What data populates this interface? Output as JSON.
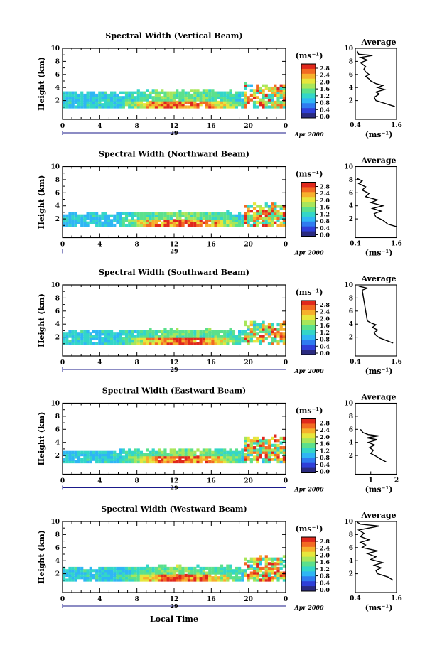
{
  "figure": {
    "x_title": "Local Time",
    "date_label": "Apr 2000",
    "day_label": "29",
    "y_title": "Height (km)",
    "unit_label": "(ms⁻¹)",
    "avg_title": "Average",
    "avg_xlabel": "(ms⁻¹)"
  },
  "colorscale": {
    "ticks": [
      "2.8",
      "2.4",
      "2.0",
      "1.6",
      "1.2",
      "0.8",
      "0.4",
      "0.0"
    ],
    "colors": [
      "#2a2a80",
      "#2f3fd8",
      "#2f7bf0",
      "#2fb6f4",
      "#33d6c8",
      "#5be08c",
      "#a8e65a",
      "#e6e63c",
      "#f6b02c",
      "#f26a22",
      "#e0281c"
    ]
  },
  "chart_data": [
    {
      "type": "heatmap",
      "title": "Spectral Width (Vertical Beam)",
      "xlim": [
        0,
        24
      ],
      "ylim": [
        0,
        10
      ],
      "xticks": [
        "0",
        "4",
        "8",
        "12",
        "16",
        "20",
        "0"
      ],
      "yticks": [
        "2",
        "4",
        "6",
        "8",
        "10"
      ],
      "low_top_km": 3.1,
      "conv_top_km": 4.2,
      "avg": {
        "xlim": [
          0.4,
          1.6
        ],
        "xticks": [
          "0.4",
          "1.6"
        ],
        "profile": [
          [
            1.55,
            1.1
          ],
          [
            1.3,
            1.5
          ],
          [
            1.0,
            2.0
          ],
          [
            0.95,
            2.5
          ],
          [
            1.1,
            3.0
          ],
          [
            1.0,
            3.3
          ],
          [
            1.25,
            3.7
          ],
          [
            1.05,
            4.0
          ],
          [
            1.2,
            4.3
          ],
          [
            1.0,
            4.6
          ],
          [
            0.85,
            5.0
          ],
          [
            0.8,
            5.3
          ],
          [
            0.7,
            5.7
          ],
          [
            0.8,
            6.0
          ],
          [
            0.7,
            6.4
          ],
          [
            0.65,
            6.8
          ],
          [
            0.7,
            7.2
          ],
          [
            0.55,
            7.8
          ],
          [
            0.75,
            8.2
          ],
          [
            0.55,
            8.6
          ],
          [
            0.9,
            8.9
          ],
          [
            0.5,
            9.1
          ],
          [
            0.45,
            9.6
          ]
        ]
      }
    },
    {
      "type": "heatmap",
      "title": "Spectral Width (Northward Beam)",
      "xlim": [
        0,
        24
      ],
      "ylim": [
        0,
        10
      ],
      "xticks": [
        "0",
        "4",
        "8",
        "12",
        "16",
        "20",
        "0"
      ],
      "yticks": [
        "2",
        "4",
        "6",
        "8",
        "10"
      ],
      "low_top_km": 2.6,
      "conv_top_km": 4.0,
      "avg": {
        "xlim": [
          0.4,
          1.6
        ],
        "xticks": [
          "0.4",
          "1.6"
        ],
        "profile": [
          [
            1.6,
            0.8
          ],
          [
            1.35,
            1.2
          ],
          [
            1.2,
            1.8
          ],
          [
            1.0,
            2.3
          ],
          [
            0.95,
            2.8
          ],
          [
            1.15,
            3.2
          ],
          [
            0.9,
            3.6
          ],
          [
            1.2,
            4.0
          ],
          [
            0.85,
            4.5
          ],
          [
            1.05,
            4.9
          ],
          [
            0.7,
            5.4
          ],
          [
            0.8,
            5.9
          ],
          [
            0.6,
            6.4
          ],
          [
            0.7,
            6.9
          ],
          [
            0.5,
            7.4
          ],
          [
            0.6,
            7.8
          ],
          [
            0.45,
            8.2
          ]
        ]
      }
    },
    {
      "type": "heatmap",
      "title": "Spectral Width (Southward Beam)",
      "xlim": [
        0,
        24
      ],
      "ylim": [
        0,
        10
      ],
      "xticks": [
        "0",
        "4",
        "8",
        "12",
        "16",
        "20",
        "0"
      ],
      "yticks": [
        "2",
        "4",
        "6",
        "8",
        "10"
      ],
      "low_top_km": 2.7,
      "conv_top_km": 4.1,
      "avg": {
        "xlim": [
          0.4,
          1.6
        ],
        "xticks": [
          "0.4",
          "1.6"
        ],
        "profile": [
          [
            1.5,
            1.1
          ],
          [
            1.3,
            1.5
          ],
          [
            1.1,
            1.9
          ],
          [
            1.0,
            2.3
          ],
          [
            0.95,
            2.7
          ],
          [
            1.05,
            3.1
          ],
          [
            0.9,
            3.5
          ],
          [
            1.0,
            3.9
          ],
          [
            0.85,
            4.2
          ],
          [
            0.75,
            4.5
          ],
          [
            0.6,
            9.2
          ],
          [
            0.75,
            9.5
          ],
          [
            0.5,
            9.8
          ]
        ]
      }
    },
    {
      "type": "heatmap",
      "title": "Spectral Width (Eastward Beam)",
      "xlim": [
        0,
        24
      ],
      "ylim": [
        0,
        10
      ],
      "xticks": [
        "0",
        "4",
        "8",
        "12",
        "16",
        "20",
        "0"
      ],
      "yticks": [
        "2",
        "4",
        "6",
        "8",
        "10"
      ],
      "low_top_km": 2.5,
      "conv_top_km": 4.5,
      "avg": {
        "xlim": [
          0.4,
          2.0
        ],
        "xticks": [
          "1",
          "2"
        ],
        "profile": [
          [
            1.6,
            1.0
          ],
          [
            1.4,
            1.4
          ],
          [
            1.2,
            1.9
          ],
          [
            1.0,
            2.3
          ],
          [
            1.1,
            2.8
          ],
          [
            0.95,
            3.2
          ],
          [
            1.15,
            3.6
          ],
          [
            0.9,
            4.0
          ],
          [
            1.25,
            4.4
          ],
          [
            0.85,
            4.7
          ],
          [
            1.3,
            5.0
          ],
          [
            0.9,
            5.2
          ],
          [
            0.7,
            5.5
          ],
          [
            0.6,
            6.0
          ]
        ]
      }
    },
    {
      "type": "heatmap",
      "title": "Spectral Width (Westward Beam)",
      "xlim": [
        0,
        24
      ],
      "ylim": [
        0,
        10
      ],
      "xticks": [
        "0",
        "4",
        "8",
        "12",
        "16",
        "20",
        "0"
      ],
      "yticks": [
        "2",
        "4",
        "6",
        "8",
        "10"
      ],
      "low_top_km": 2.7,
      "conv_top_km": 4.3,
      "avg": {
        "xlim": [
          0.4,
          1.6
        ],
        "xticks": [
          "0.4",
          "1.6"
        ],
        "profile": [
          [
            1.5,
            1.0
          ],
          [
            1.35,
            1.5
          ],
          [
            1.05,
            2.0
          ],
          [
            1.0,
            2.5
          ],
          [
            1.15,
            2.9
          ],
          [
            0.95,
            3.3
          ],
          [
            1.2,
            3.7
          ],
          [
            0.85,
            4.2
          ],
          [
            1.0,
            4.6
          ],
          [
            0.75,
            5.1
          ],
          [
            1.05,
            5.5
          ],
          [
            0.6,
            6.0
          ],
          [
            0.7,
            6.4
          ],
          [
            0.55,
            6.8
          ],
          [
            0.8,
            7.2
          ],
          [
            0.55,
            7.7
          ],
          [
            0.65,
            8.2
          ],
          [
            0.5,
            8.7
          ],
          [
            1.1,
            9.3
          ],
          [
            0.55,
            9.6
          ],
          [
            0.45,
            9.9
          ]
        ]
      }
    }
  ]
}
